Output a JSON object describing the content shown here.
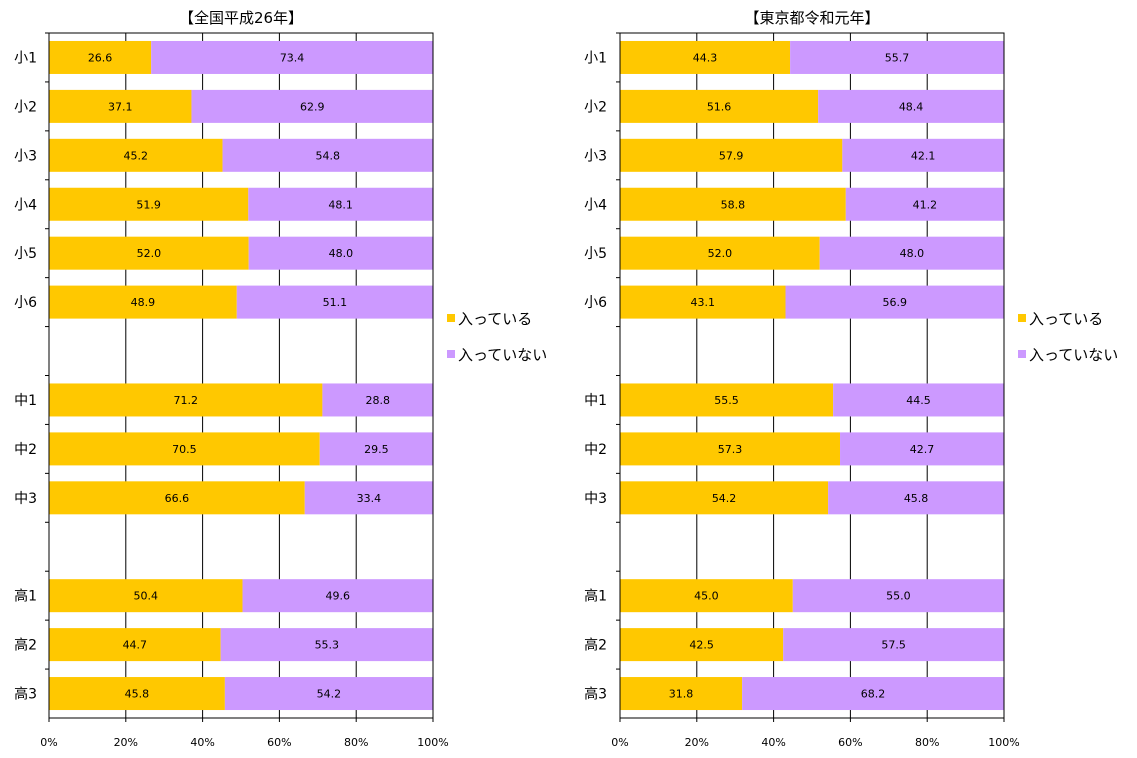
{
  "chart_data": [
    {
      "type": "bar",
      "orientation": "horizontal",
      "stacked": "percent",
      "title": "【全国平成26年】",
      "categories": [
        "小1",
        "小2",
        "小3",
        "小4",
        "小5",
        "小6",
        "",
        "中1",
        "中2",
        "中3",
        "",
        "高1",
        "高2",
        "高3"
      ],
      "series": [
        {
          "name": "入っている",
          "color": "#ffc800",
          "values": [
            26.6,
            37.1,
            45.2,
            51.9,
            52.0,
            48.9,
            null,
            71.2,
            70.5,
            66.6,
            null,
            50.4,
            44.7,
            45.8
          ],
          "labels": [
            "26.6",
            "37.1",
            "45.2",
            "51.9",
            "52.0",
            "48.9",
            "",
            "71.2",
            "70.5",
            "66.6",
            "",
            "50.4",
            "44.7",
            "45.8"
          ]
        },
        {
          "name": "入っていない",
          "color": "#cc99ff",
          "values": [
            73.4,
            62.9,
            54.8,
            48.1,
            48.0,
            51.1,
            null,
            28.8,
            29.5,
            33.4,
            null,
            49.6,
            55.3,
            54.2
          ],
          "labels": [
            "73.4",
            "62.9",
            "54.8",
            "48.1",
            "48.0",
            "51.1",
            "",
            "28.8",
            "29.5",
            "33.4",
            "",
            "49.6",
            "55.3",
            "54.2"
          ]
        }
      ],
      "xlim": [
        0,
        100
      ],
      "xticks": [
        "0%",
        "20%",
        "40%",
        "60%",
        "80%",
        "100%"
      ],
      "grid": true,
      "legend": "right"
    },
    {
      "type": "bar",
      "orientation": "horizontal",
      "stacked": "percent",
      "title": "【東京都令和元年】",
      "categories": [
        "小1",
        "小2",
        "小3",
        "小4",
        "小5",
        "小6",
        "",
        "中1",
        "中2",
        "中3",
        "",
        "高1",
        "高2",
        "高3"
      ],
      "series": [
        {
          "name": "入っている",
          "color": "#ffc800",
          "values": [
            44.3,
            51.6,
            57.9,
            58.8,
            52.0,
            43.1,
            null,
            55.5,
            57.3,
            54.2,
            null,
            45.0,
            42.5,
            31.8
          ],
          "labels": [
            "44.3",
            "51.6",
            "57.9",
            "58.8",
            "52.0",
            "43.1",
            "",
            "55.5",
            "57.3",
            "54.2",
            "",
            "45.0",
            "42.5",
            "31.8"
          ]
        },
        {
          "name": "入っていない",
          "color": "#cc99ff",
          "values": [
            55.7,
            48.4,
            42.1,
            41.2,
            48.0,
            56.9,
            null,
            44.5,
            42.7,
            45.8,
            null,
            55.0,
            57.5,
            68.2
          ],
          "labels": [
            "55.7",
            "48.4",
            "42.1",
            "41.2",
            "48.0",
            "56.9",
            "",
            "44.5",
            "42.7",
            "45.8",
            "",
            "55.0",
            "57.5",
            "68.2"
          ]
        }
      ],
      "xlim": [
        0,
        100
      ],
      "xticks": [
        "0%",
        "20%",
        "40%",
        "60%",
        "80%",
        "100%"
      ],
      "grid": true,
      "legend": "right"
    }
  ]
}
